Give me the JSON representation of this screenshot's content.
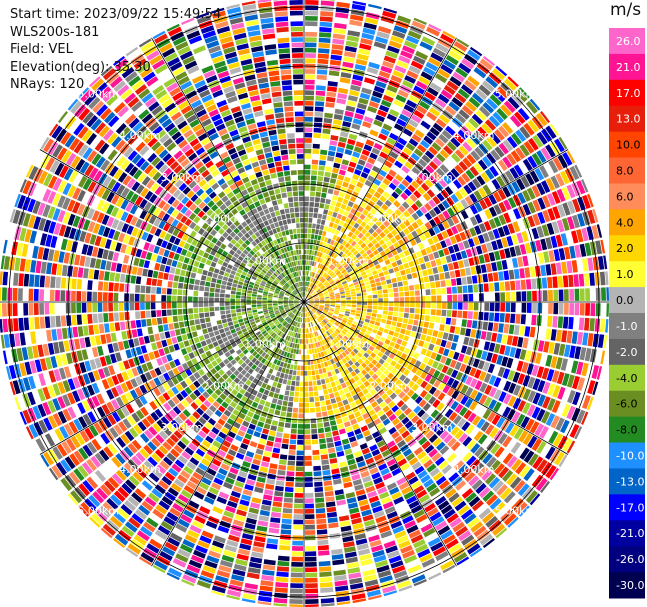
{
  "info": {
    "start_time": "Start time: 2023/09/22 15:49:54",
    "instrument": "WLS200s-181",
    "field": "Field: VEL",
    "elevation": "Elevation(deg): 35.30",
    "nrays": "NRays: 120"
  },
  "chart_data": {
    "type": "heatmap",
    "projection": "polar-ppi",
    "field": "VEL",
    "units": "m/s",
    "nrays": 120,
    "elevation_deg": 35.3,
    "range_rings_km": [
      1.0,
      2.0,
      3.0,
      4.0,
      5.0
    ],
    "ring_labels": [
      "1.00km",
      "2.00km",
      "3.00km",
      "4.00km",
      "5.00km"
    ],
    "max_range_km": 5.0,
    "colorbar": {
      "title": "m/s",
      "ticks": [
        "26.0",
        "21.0",
        "17.0",
        "13.0",
        "10.0",
        "8.0",
        "6.0",
        "4.0",
        "2.0",
        "1.0",
        "0.0",
        "-1.0",
        "-2.0",
        "-4.0",
        "-6.0",
        "-8.0",
        "-10.0",
        "-13.0",
        "-17.0",
        "-21.0",
        "-26.0",
        "-30.0"
      ],
      "colors": [
        "#ff66cc",
        "#ff1493",
        "#ff0000",
        "#e61e0a",
        "#ff4500",
        "#ff6633",
        "#ff8c5a",
        "#ffa500",
        "#ffd700",
        "#ffff33",
        "#b4b4b4",
        "#808080",
        "#646464",
        "#9acd32",
        "#6b8e23",
        "#228b22",
        "#1e90ff",
        "#0064c8",
        "#0000ff",
        "#0000a0",
        "#000080",
        "#000050"
      ]
    },
    "pattern": {
      "inner_km": 2.2,
      "inner_description": "mostly near-zero to slightly negative velocities (olive/green/gray) west and center, positive (yellow/orange) east",
      "outer_description": "noisy velocities across full color range"
    }
  }
}
